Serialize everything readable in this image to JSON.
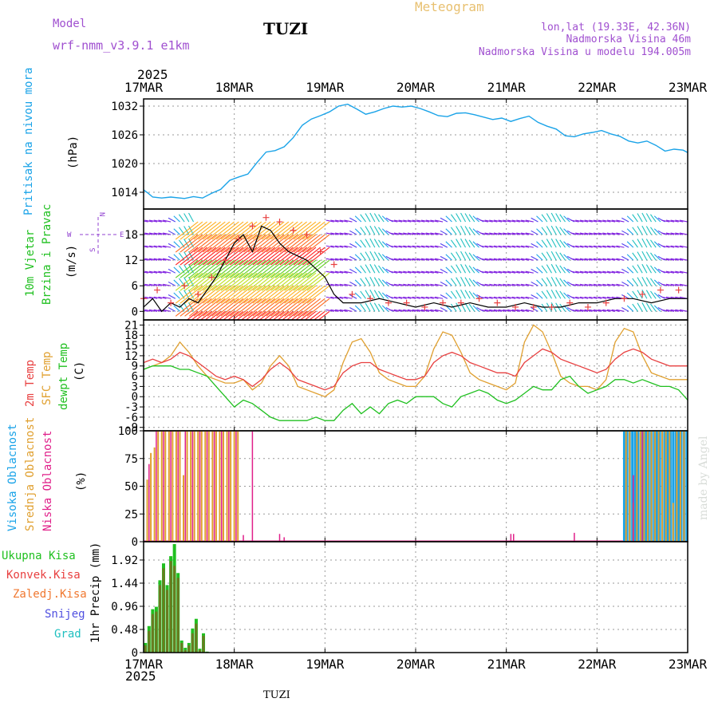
{
  "header": {
    "model_label": "Model",
    "model_name": "wrf-nmm_v3.9.1 e1km",
    "station": "TUZI",
    "meteogram_label": "Meteogram",
    "lonlat": "lon,lat (19.33E, 42.36N)",
    "elevation": "Nadmorska Visina 46m",
    "model_elevation": "Nadmorska Visina u modelu 194.005m",
    "footer_station": "TUZI",
    "credit": "made by Angel"
  },
  "colors": {
    "pressure": "#1aa3e8",
    "temp2m": "#e84040",
    "sfc": "#e0a030",
    "dewpt": "#20c020",
    "high_cloud": "#1aa3e8",
    "mid_cloud": "#e0a030",
    "low_cloud": "#e0208a",
    "precip_total": "#20c020",
    "precip_conv": "#e84040",
    "precip_strat": "#f07830",
    "snow": "#5050e0",
    "hail": "#20c0c0",
    "wind_label": "#20c020",
    "compass": "#9040d0"
  },
  "time_axis": {
    "year": "2025",
    "days": [
      "17MAR",
      "18MAR",
      "19MAR",
      "20MAR",
      "21MAR",
      "22MAR",
      "23MAR"
    ]
  },
  "chart_data": [
    {
      "type": "line",
      "name": "pressure",
      "label_main": "Pritisak na nivou mora",
      "unit": "(hPa)",
      "yticks": [
        "1014",
        "1020",
        "1026",
        "1032"
      ],
      "ylim": [
        1010.5,
        1033.5
      ],
      "x_days": [
        0,
        0.05,
        0.1,
        0.2,
        0.3,
        0.45,
        0.55,
        0.65,
        0.75,
        0.85,
        0.95,
        1.05,
        1.15,
        1.25,
        1.35,
        1.45,
        1.55,
        1.65,
        1.75,
        1.85,
        1.95,
        2.05,
        2.15,
        2.25,
        2.35,
        2.45,
        2.55,
        2.65,
        2.75,
        2.85,
        2.95,
        3.05,
        3.15,
        3.25,
        3.35,
        3.45,
        3.55,
        3.65,
        3.75,
        3.85,
        3.95,
        4.05,
        4.15,
        4.25,
        4.35,
        4.45,
        4.55,
        4.65,
        4.75,
        4.85,
        4.95,
        5.05,
        5.15,
        5.25,
        5.35,
        5.45,
        5.55,
        5.65,
        5.75,
        5.85,
        5.95,
        6.0
      ],
      "values": [
        1014.5,
        1013.8,
        1013.0,
        1012.8,
        1013.0,
        1012.7,
        1013.1,
        1012.8,
        1013.8,
        1014.6,
        1016.5,
        1017.2,
        1017.8,
        1020.2,
        1022.4,
        1022.7,
        1023.5,
        1025.4,
        1028.0,
        1029.3,
        1030.0,
        1030.8,
        1032.0,
        1032.4,
        1031.4,
        1030.3,
        1030.8,
        1031.5,
        1032.0,
        1031.8,
        1032.0,
        1031.5,
        1030.8,
        1030.0,
        1029.8,
        1030.5,
        1030.6,
        1030.2,
        1029.7,
        1029.2,
        1029.5,
        1028.8,
        1029.4,
        1029.9,
        1028.6,
        1027.8,
        1027.2,
        1025.8,
        1025.6,
        1026.2,
        1026.5,
        1026.9,
        1026.2,
        1025.7,
        1024.7,
        1024.3,
        1024.7,
        1023.8,
        1022.6,
        1023.0,
        1022.8,
        1022.3
      ]
    },
    {
      "type": "scatter",
      "name": "wind",
      "label_main": "10m Vjetar",
      "label_sub": "Brzina i Pravac",
      "unit": "(m/s)",
      "compass": [
        "N",
        "W",
        "E",
        "S"
      ],
      "yticks": [
        "0",
        "6",
        "12",
        "18"
      ],
      "ylim": [
        -2,
        24
      ],
      "speed_x": [
        0,
        0.1,
        0.2,
        0.3,
        0.4,
        0.5,
        0.6,
        0.7,
        0.8,
        0.9,
        1.0,
        1.1,
        1.2,
        1.3,
        1.4,
        1.5,
        1.6,
        1.7,
        1.8,
        1.9,
        2.0,
        2.1,
        2.2,
        2.4,
        2.6,
        2.8,
        3.0,
        3.2,
        3.4,
        3.6,
        3.8,
        4.0,
        4.2,
        4.4,
        4.6,
        4.8,
        5.0,
        5.2,
        5.4,
        5.6,
        5.8,
        6.0
      ],
      "speed": [
        1,
        3,
        0,
        2,
        1,
        3,
        2,
        5,
        8,
        12,
        16,
        18,
        14,
        20,
        19,
        16,
        14,
        13,
        12,
        10,
        8,
        4,
        2,
        2,
        3,
        2,
        1,
        2,
        1,
        2,
        1,
        1,
        2,
        1,
        1,
        2,
        2,
        3,
        3,
        2,
        3,
        3
      ],
      "gust_x": [
        0,
        0.15,
        0.3,
        0.45,
        0.6,
        0.75,
        0.9,
        1.05,
        1.2,
        1.35,
        1.5,
        1.65,
        1.8,
        1.95,
        2.1,
        2.3,
        2.5,
        2.7,
        2.9,
        3.1,
        3.3,
        3.5,
        3.7,
        3.9,
        4.1,
        4.3,
        4.5,
        4.7,
        4.9,
        5.1,
        5.3,
        5.5,
        5.7,
        5.9
      ],
      "gust": [
        3,
        5,
        2,
        6,
        4,
        8,
        12,
        17,
        20,
        22,
        21,
        19,
        18,
        14,
        11,
        4,
        3,
        2,
        2,
        1,
        2,
        2,
        3,
        2,
        1,
        1,
        1,
        2,
        1,
        2,
        3,
        4,
        5,
        5
      ]
    },
    {
      "type": "line",
      "name": "temperature",
      "label_a": "2m Temp",
      "label_b": "SFC Temp",
      "label_c": "dewpt Temp",
      "unit": "(C)",
      "yticks": [
        "-9",
        "-6",
        "-3",
        "0",
        "3",
        "6",
        "9",
        "12",
        "15",
        "18",
        "21"
      ],
      "ylim": [
        -10,
        22.5
      ],
      "x_days": [
        0,
        0.1,
        0.2,
        0.3,
        0.4,
        0.5,
        0.6,
        0.7,
        0.8,
        0.9,
        1.0,
        1.1,
        1.2,
        1.3,
        1.4,
        1.5,
        1.6,
        1.7,
        1.8,
        1.9,
        2.0,
        2.1,
        2.2,
        2.3,
        2.4,
        2.5,
        2.6,
        2.7,
        2.8,
        2.9,
        3.0,
        3.1,
        3.2,
        3.3,
        3.4,
        3.5,
        3.6,
        3.7,
        3.8,
        3.9,
        4.0,
        4.1,
        4.2,
        4.3,
        4.4,
        4.5,
        4.6,
        4.7,
        4.8,
        4.9,
        5.0,
        5.1,
        5.2,
        5.3,
        5.4,
        5.5,
        5.6,
        5.7,
        5.8,
        5.9,
        6.0
      ],
      "temp2m": [
        10,
        11,
        10,
        11,
        13,
        12,
        10,
        8,
        6,
        5,
        6,
        5,
        3,
        5,
        8,
        10,
        8,
        5,
        4,
        3,
        2,
        3,
        7,
        9,
        10,
        10,
        8,
        7,
        6,
        5,
        5,
        6,
        10,
        12,
        13,
        12,
        10,
        9,
        8,
        7,
        7,
        6,
        10,
        12,
        14,
        13,
        11,
        10,
        9,
        8,
        7,
        8,
        11,
        13,
        14,
        13,
        11,
        10,
        9,
        9,
        9
      ],
      "sfc": [
        8,
        9,
        10,
        12,
        16,
        13,
        9,
        6,
        5,
        4,
        4,
        5,
        2,
        4,
        9,
        12,
        9,
        3,
        2,
        1,
        0,
        2,
        10,
        16,
        17,
        13,
        7,
        5,
        4,
        3,
        3,
        6,
        14,
        19,
        18,
        13,
        7,
        5,
        4,
        3,
        2,
        4,
        16,
        21,
        19,
        13,
        6,
        4,
        3,
        3,
        2,
        5,
        16,
        20,
        19,
        12,
        7,
        6,
        5,
        5,
        5
      ],
      "dewpt": [
        8,
        9,
        9,
        9,
        8,
        8,
        7,
        6,
        3,
        0,
        -3,
        -1,
        -2,
        -4,
        -6,
        -7,
        -7,
        -7,
        -7,
        -6,
        -7,
        -7,
        -4,
        -2,
        -5,
        -3,
        -5,
        -2,
        -1,
        -2,
        0,
        0,
        0,
        -2,
        -3,
        0,
        1,
        2,
        1,
        -1,
        -2,
        -1,
        1,
        3,
        2,
        2,
        5,
        6,
        3,
        1,
        2,
        3,
        5,
        5,
        4,
        5,
        4,
        3,
        3,
        2,
        -1
      ]
    },
    {
      "type": "bar",
      "name": "clouds",
      "label_a": "Visoka Oblacnost",
      "label_b": "Srednja Oblacnost",
      "label_c": "Niska Oblacnost",
      "unit": "(%)",
      "yticks": [
        "0",
        "25",
        "50",
        "75",
        "100"
      ],
      "ylim": [
        0,
        100
      ],
      "high_x": [
        5.3,
        5.33,
        5.36,
        5.39,
        5.42,
        5.45,
        5.48,
        5.51,
        5.54,
        5.57,
        5.6,
        5.63,
        5.66,
        5.69,
        5.72,
        5.75,
        5.78,
        5.81,
        5.84,
        5.87,
        5.9,
        5.93,
        5.96,
        5.99
      ],
      "high_values": [
        100,
        100,
        100,
        100,
        100,
        100,
        100,
        100,
        100,
        100,
        100,
        100,
        100,
        100,
        100,
        100,
        100,
        100,
        100,
        100,
        100,
        100,
        100,
        100
      ],
      "mid_x": [
        0.04,
        0.08,
        0.12,
        0.16,
        0.2,
        0.24,
        0.28,
        0.32,
        0.36,
        0.4,
        0.44,
        0.48,
        0.52,
        0.56,
        0.6,
        0.64,
        0.68,
        0.72,
        0.76,
        0.8,
        0.84,
        0.88,
        0.92,
        0.96,
        1.0,
        1.04,
        5.32,
        5.36,
        5.4,
        5.44,
        5.48,
        5.52,
        5.56,
        5.6,
        5.64,
        5.68,
        5.72,
        5.76,
        5.8,
        5.84,
        5.88,
        5.92,
        5.96
      ],
      "mid_values": [
        56,
        80,
        85,
        100,
        100,
        100,
        100,
        100,
        100,
        100,
        60,
        100,
        100,
        100,
        100,
        100,
        100,
        100,
        100,
        100,
        100,
        100,
        100,
        100,
        100,
        100,
        100,
        100,
        35,
        100,
        100,
        100,
        100,
        100,
        100,
        100,
        100,
        100,
        100,
        35,
        100,
        100,
        100
      ],
      "low_x": [
        0.06,
        0.14,
        0.22,
        0.3,
        0.38,
        0.46,
        0.54,
        0.62,
        0.7,
        0.78,
        0.86,
        0.94,
        1.02,
        1.1,
        1.2,
        1.5,
        1.55,
        4.05,
        4.08,
        4.75,
        5.4,
        5.5
      ],
      "low_values": [
        70,
        100,
        100,
        100,
        100,
        100,
        100,
        100,
        100,
        100,
        100,
        100,
        100,
        6,
        100,
        7,
        4,
        7,
        7,
        8,
        60,
        100
      ]
    },
    {
      "type": "bar",
      "name": "precip",
      "label_a": "Ukupna Kisa",
      "label_b": "Konvek.Kisa",
      "label_c": "Zaledj.Kisa",
      "label_d": "Snijeg",
      "label_e": "Grad",
      "unit": "1hr Precip (mm)",
      "yticks": [
        "0",
        "0.48",
        "0.96",
        "1.44",
        "1.92"
      ],
      "ylim": [
        0,
        2.3
      ],
      "x_days": [
        0.02,
        0.06,
        0.1,
        0.14,
        0.18,
        0.22,
        0.26,
        0.3,
        0.34,
        0.38,
        0.42,
        0.46,
        0.5,
        0.54,
        0.58,
        0.62,
        0.66,
        0.7
      ],
      "total": [
        0.2,
        0.55,
        0.9,
        0.95,
        1.5,
        1.85,
        1.4,
        2.0,
        2.25,
        1.65,
        0.25,
        0.1,
        0.2,
        0.5,
        0.7,
        0.08,
        0.4,
        0.02
      ],
      "convective": [
        0.15,
        0.45,
        0.8,
        0.85,
        1.4,
        1.75,
        1.3,
        1.9,
        1.8,
        1.55,
        0.2,
        0.05,
        0.15,
        0.4,
        0.6,
        0.05,
        0.35,
        0.01
      ]
    }
  ]
}
